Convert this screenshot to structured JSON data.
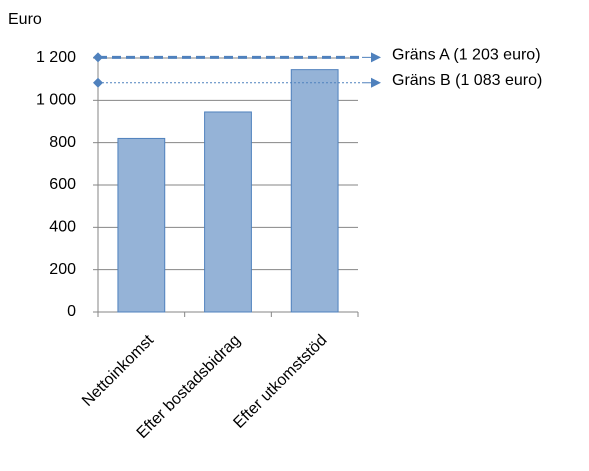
{
  "chart_data": {
    "type": "bar",
    "y_label": "Euro",
    "categories": [
      "Nettoinkomst",
      "Efter bostadsbidrag",
      "Efter utkomststöd"
    ],
    "values": [
      820,
      945,
      1145
    ],
    "color": "#95b3d7",
    "edge_color": "#4f81bd",
    "ylim": [
      0,
      1200
    ],
    "yticks": [
      0,
      200,
      400,
      600,
      800,
      {
        "value": 1000,
        "label": "1 000"
      },
      {
        "value": 1200,
        "label": "1 200"
      }
    ],
    "grid": true,
    "reference_lines": [
      {
        "label": "Gräns A (1 203 euro)",
        "value": 1203,
        "color": "#4f81bd",
        "style": "dashed"
      },
      {
        "label": "Gräns B (1 083 euro)",
        "value": 1083,
        "color": "#4f81bd",
        "style": "dotted"
      }
    ]
  }
}
